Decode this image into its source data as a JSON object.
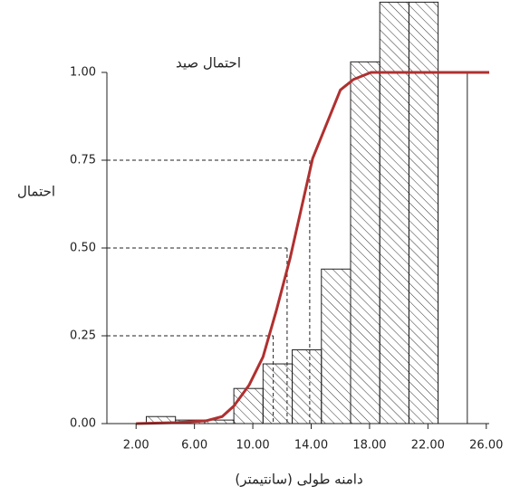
{
  "chart_data": {
    "type": "histogram",
    "title": "احتمال صید",
    "y_label": "احتمال",
    "x_label": "دامنه طولی (سانتیمتر)",
    "bins": [
      2.7,
      4.7,
      6.7,
      8.7,
      10.7,
      12.7,
      14.7,
      16.7,
      18.7,
      20.7,
      22.7,
      24.7
    ],
    "values": [
      0.02,
      0.01,
      0.01,
      0.1,
      0.17,
      0.21,
      0.44,
      1.03,
      1.2,
      1.2,
      1.0
    ],
    "hatched": [
      true,
      true,
      true,
      true,
      true,
      true,
      true,
      true,
      true,
      true,
      false
    ],
    "curve": {
      "color": "#b03030",
      "x": [
        2,
        4.8,
        6.8,
        7.9,
        8.7,
        9.75,
        10.7,
        11.6,
        12.55,
        14.1,
        16.0,
        16.9,
        18.1,
        20,
        26.2
      ],
      "values": [
        0,
        0.003,
        0.008,
        0.02,
        0.05,
        0.11,
        0.19,
        0.32,
        0.47,
        0.755,
        0.95,
        0.98,
        1.0,
        1.0,
        1.0
      ]
    },
    "reference_lines": [
      {
        "y": 0.25,
        "x": 11.4
      },
      {
        "y": 0.5,
        "x": 12.35
      },
      {
        "y": 0.75,
        "x": 13.9
      }
    ],
    "xlim": [
      0,
      26.2
    ],
    "ylim": [
      0,
      1.2
    ],
    "xticks": [
      {
        "value": 2,
        "label": "2.00"
      },
      {
        "value": 6,
        "label": "6.00"
      },
      {
        "value": 10,
        "label": "10.00"
      },
      {
        "value": 14,
        "label": "14.00"
      },
      {
        "value": 18,
        "label": "18.00"
      },
      {
        "value": 22,
        "label": "22.00"
      },
      {
        "value": 26,
        "label": "26.00"
      }
    ],
    "yticks": [
      {
        "value": 0,
        "label": "0.00"
      },
      {
        "value": 0.25,
        "label": "0.25"
      },
      {
        "value": 0.5,
        "label": "0.50"
      },
      {
        "value": 0.75,
        "label": "0.75"
      },
      {
        "value": 1,
        "label": "1.00"
      }
    ]
  }
}
